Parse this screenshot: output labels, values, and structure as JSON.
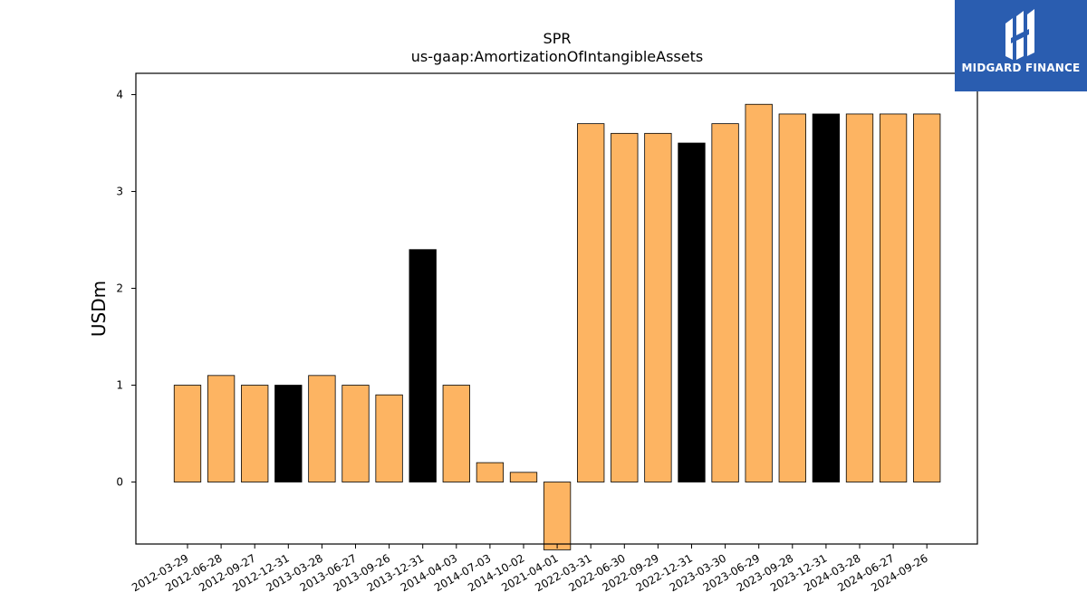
{
  "logo": {
    "name": "MIDGARD FINANCE",
    "icon": "midgard-logo-icon",
    "background": "#2a5db0"
  },
  "chart_data": {
    "type": "bar",
    "title": "SPR",
    "subtitle": "us-gaap:AmortizationOfIntangibleAssets",
    "xlabel": "",
    "ylabel": "USDm",
    "ylim": [
      -0.64,
      4.22
    ],
    "yticks": [
      0,
      1,
      2,
      3,
      4
    ],
    "grid": false,
    "categories": [
      "2012-03-29",
      "2012-06-28",
      "2012-09-27",
      "2012-12-31",
      "2013-03-28",
      "2013-06-27",
      "2013-09-26",
      "2013-12-31",
      "2014-04-03",
      "2014-07-03",
      "2014-10-02",
      "2021-04-01",
      "2022-03-31",
      "2022-06-30",
      "2022-09-29",
      "2022-12-31",
      "2023-03-30",
      "2023-06-29",
      "2023-09-28",
      "2023-12-31",
      "2024-03-28",
      "2024-06-27",
      "2024-09-26"
    ],
    "values": [
      1.0,
      1.1,
      1.0,
      1.0,
      1.1,
      1.0,
      0.9,
      2.4,
      1.0,
      0.2,
      0.1,
      -0.7,
      3.7,
      3.6,
      3.6,
      3.5,
      3.7,
      3.9,
      3.8,
      3.8,
      3.8,
      3.8,
      3.8
    ],
    "highlight": [
      false,
      false,
      false,
      true,
      false,
      false,
      false,
      true,
      false,
      false,
      false,
      false,
      false,
      false,
      false,
      true,
      false,
      false,
      false,
      true,
      false,
      false,
      false
    ],
    "colors": {
      "bar": "#fdb462",
      "highlight": "#000000",
      "edge": "#000000"
    }
  }
}
